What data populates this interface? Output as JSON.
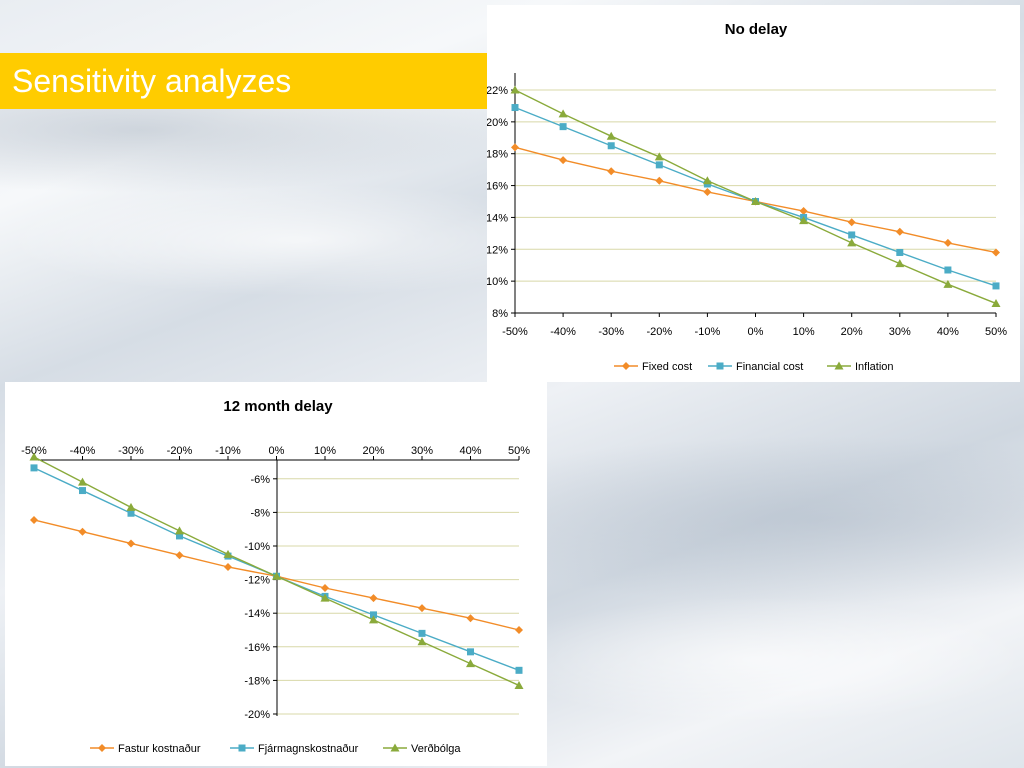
{
  "slide": {
    "title": "Sensitivity analyzes",
    "accent_color": "#ffcc00"
  },
  "chart_data": [
    {
      "type": "line",
      "title": "No delay",
      "categories": [
        "-50%",
        "-40%",
        "-30%",
        "-20%",
        "-10%",
        "0%",
        "10%",
        "20%",
        "30%",
        "40%",
        "50%"
      ],
      "ylim": [
        0.08,
        0.22
      ],
      "yticks": [
        "8%",
        "10%",
        "12%",
        "14%",
        "16%",
        "18%",
        "20%",
        "22%"
      ],
      "xaxis_position": "bottom",
      "grid": true,
      "legend": "bottom",
      "series": [
        {
          "name": "Fixed cost",
          "color": "#f28c28",
          "marker": "diamond",
          "values": [
            0.184,
            0.176,
            0.169,
            0.163,
            0.156,
            0.15,
            0.144,
            0.137,
            0.131,
            0.124,
            0.118
          ]
        },
        {
          "name": "Financial cost",
          "color": "#4bacc6",
          "marker": "square",
          "values": [
            0.209,
            0.197,
            0.185,
            0.173,
            0.161,
            0.15,
            0.14,
            0.129,
            0.118,
            0.107,
            0.097
          ]
        },
        {
          "name": "Inflation",
          "color": "#8aaa3b",
          "marker": "triangle",
          "values": [
            0.22,
            0.205,
            0.191,
            0.178,
            0.163,
            0.15,
            0.138,
            0.124,
            0.111,
            0.098,
            0.086
          ]
        }
      ]
    },
    {
      "type": "line",
      "title": "12 month delay",
      "categories": [
        "-50%",
        "-40%",
        "-30%",
        "-20%",
        "-10%",
        "0%",
        "10%",
        "20%",
        "30%",
        "40%",
        "50%"
      ],
      "ylim": [
        -0.2,
        -0.05
      ],
      "yticks": [
        "-6%",
        "-8%",
        "-10%",
        "-12%",
        "-14%",
        "-16%",
        "-18%",
        "-20%"
      ],
      "xaxis_position": "top",
      "grid": true,
      "legend": "bottom",
      "series": [
        {
          "name": "Fastur kostnaður",
          "color": "#f28c28",
          "marker": "diamond",
          "values": [
            -0.0845,
            -0.0915,
            -0.0985,
            -0.1055,
            -0.1125,
            -0.118,
            -0.125,
            -0.131,
            -0.137,
            -0.143,
            -0.15
          ]
        },
        {
          "name": "Fjármagnskostnaður",
          "color": "#4bacc6",
          "marker": "square",
          "values": [
            -0.0535,
            -0.067,
            -0.0805,
            -0.094,
            -0.106,
            -0.118,
            -0.13,
            -0.141,
            -0.152,
            -0.163,
            -0.174
          ]
        },
        {
          "name": "Verðbólga",
          "color": "#8aaa3b",
          "marker": "triangle",
          "values": [
            -0.047,
            -0.062,
            -0.077,
            -0.091,
            -0.105,
            -0.118,
            -0.131,
            -0.144,
            -0.157,
            -0.17,
            -0.183
          ]
        }
      ]
    }
  ]
}
